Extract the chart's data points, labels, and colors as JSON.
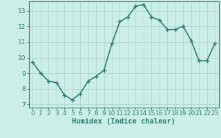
{
  "x": [
    0,
    1,
    2,
    3,
    4,
    5,
    6,
    7,
    8,
    9,
    10,
    11,
    12,
    13,
    14,
    15,
    16,
    17,
    18,
    19,
    20,
    21,
    22,
    23
  ],
  "y": [
    9.7,
    9.0,
    8.5,
    8.4,
    7.6,
    7.3,
    7.7,
    8.5,
    8.8,
    9.2,
    10.9,
    12.3,
    12.6,
    13.3,
    13.4,
    12.6,
    12.4,
    11.8,
    11.8,
    12.0,
    11.1,
    9.8,
    9.8,
    10.9
  ],
  "line_color": "#2e7d6e",
  "marker": "+",
  "marker_size": 4,
  "bg_color": "#cceee8",
  "grid_color": "#b0d8d0",
  "xlabel": "Humidex (Indice chaleur)",
  "xlim": [
    -0.5,
    23.5
  ],
  "ylim": [
    6.8,
    13.6
  ],
  "yticks": [
    7,
    8,
    9,
    10,
    11,
    12,
    13
  ],
  "xticks": [
    0,
    1,
    2,
    3,
    4,
    5,
    6,
    7,
    8,
    9,
    10,
    11,
    12,
    13,
    14,
    15,
    16,
    17,
    18,
    19,
    20,
    21,
    22,
    23
  ],
  "tick_label_fontsize": 6.5,
  "xlabel_fontsize": 7.5,
  "linewidth": 1.2
}
